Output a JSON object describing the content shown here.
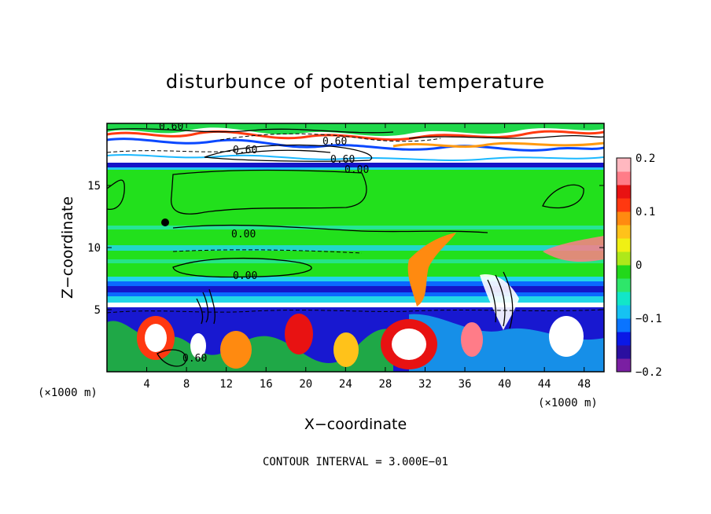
{
  "chart_data": {
    "type": "heatmap",
    "title": "disturbunce of potential temperature",
    "xlabel": "X−coordinate",
    "ylabel": "Z−coordinate",
    "x_unit_left": "(×1000 m)",
    "x_unit_right": "(×1000 m)",
    "footer": "CONTOUR INTERVAL = 3.000E−01",
    "xlim": [
      0,
      50
    ],
    "ylim": [
      0,
      20
    ],
    "x_ticks": [
      "4",
      "8",
      "12",
      "16",
      "20",
      "24",
      "28",
      "32",
      "36",
      "40",
      "44",
      "48"
    ],
    "x_tick_values": [
      4,
      8,
      12,
      16,
      20,
      24,
      28,
      32,
      36,
      40,
      44,
      48
    ],
    "y_ticks": [
      "5",
      "10",
      "15"
    ],
    "y_tick_values": [
      5,
      10,
      15
    ],
    "colorbar": {
      "range": [
        -0.2,
        0.2
      ],
      "labels": [
        "0.2",
        "0.1",
        "0",
        "−0.1",
        "−0.2"
      ],
      "label_values": [
        0.2,
        0.1,
        0,
        -0.1,
        -0.2
      ],
      "colors": [
        "#7a1fa2",
        "#2a0fa0",
        "#0a18e6",
        "#0a74ff",
        "#16c2f2",
        "#12e6c8",
        "#2ee66a",
        "#22d81a",
        "#aee81a",
        "#f0f014",
        "#ffc21a",
        "#ff8a10",
        "#ff3810",
        "#e81212",
        "#ff7c88",
        "#ffb8c0"
      ]
    },
    "contour_labels": [
      "0.60",
      "0.60",
      "0.60",
      "0.60",
      "0.00",
      "0.00",
      "0.00",
      "0.60"
    ]
  },
  "colors": {
    "background": "#ffffff",
    "field_base": "#22e01c",
    "band_cold": "#1414c8",
    "band_cyan": "#22d6e6"
  }
}
